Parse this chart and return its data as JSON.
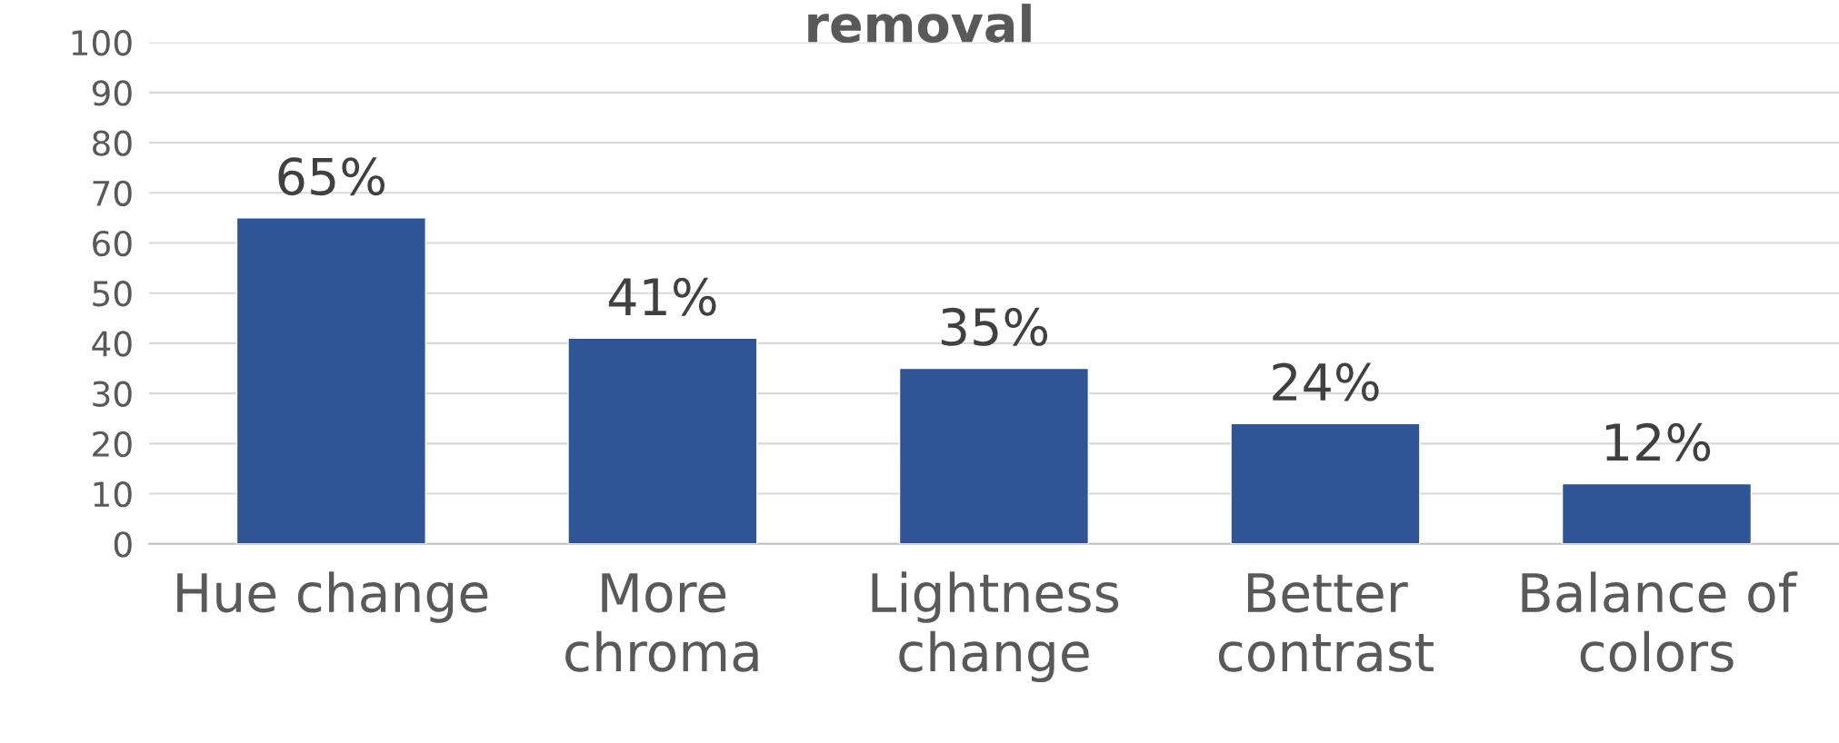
{
  "chart_data": {
    "type": "bar",
    "title": "removal",
    "categories": [
      "Hue change",
      "More\nchroma",
      "Lightness\nchange",
      "Better\ncontrast",
      "Balance of\ncolors"
    ],
    "values": [
      65,
      41,
      35,
      24,
      12
    ],
    "color": "#2f5597",
    "value_labels": [
      "65%",
      "41%",
      "35%",
      "24%",
      "12%"
    ],
    "ylim": [
      0,
      100
    ],
    "yticks": [
      0,
      10,
      20,
      30,
      40,
      50,
      60,
      70,
      80,
      90,
      100
    ],
    "grid": "y"
  }
}
